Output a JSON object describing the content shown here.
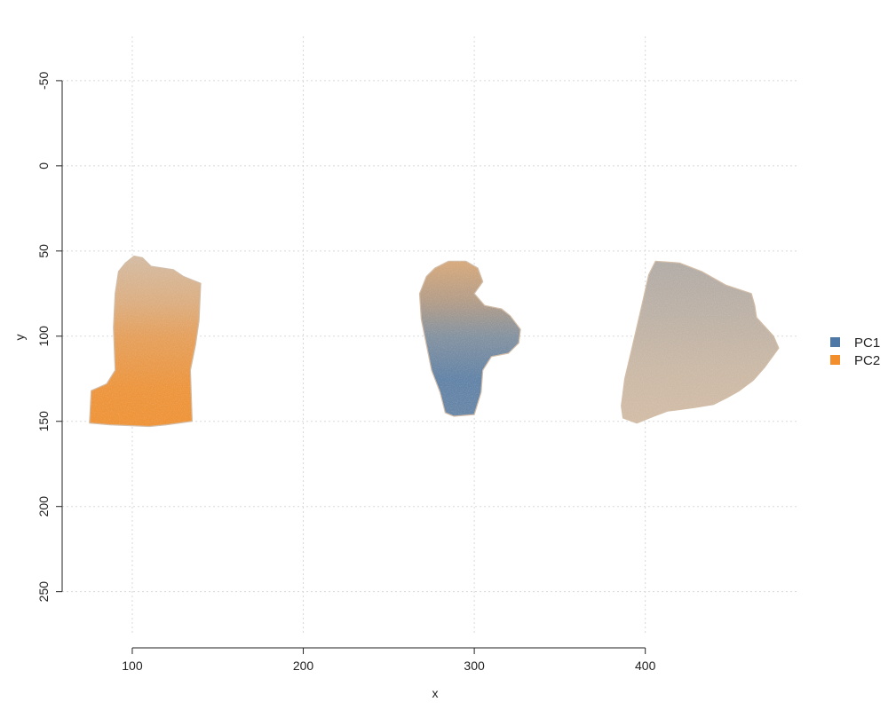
{
  "chart_data": {
    "type": "scatter",
    "xlabel": "x",
    "ylabel": "y",
    "xlim": [
      59,
      490
    ],
    "ylim": [
      -76,
      283
    ],
    "y_reversed": true,
    "x_ticks": [
      100,
      200,
      300,
      400
    ],
    "y_ticks": [
      -50,
      0,
      50,
      100,
      150,
      200,
      250
    ],
    "x_tick_labels": [
      "100",
      "200",
      "300",
      "400"
    ],
    "y_tick_labels": [
      "-50",
      "0",
      "50",
      "100",
      "150",
      "200",
      "250"
    ],
    "grid": true,
    "legend_position": "right",
    "legend": [
      {
        "name": "PC1",
        "color": "#4e79a7"
      },
      {
        "name": "PC2",
        "color": "#f28e2b"
      }
    ],
    "background_color": "#d2bca6",
    "regions": [
      {
        "id": "section-1",
        "outline": [
          [
            101,
            53
          ],
          [
            106,
            54
          ],
          [
            111,
            59
          ],
          [
            124,
            61
          ],
          [
            130,
            65
          ],
          [
            140,
            69
          ],
          [
            139,
            91
          ],
          [
            137,
            105
          ],
          [
            134,
            120
          ],
          [
            135,
            150
          ],
          [
            120,
            152
          ],
          [
            110,
            153
          ],
          [
            87,
            152
          ],
          [
            75,
            151
          ],
          [
            76,
            132
          ],
          [
            85,
            128
          ],
          [
            90,
            120
          ],
          [
            89,
            95
          ],
          [
            90,
            75
          ],
          [
            92,
            62
          ],
          [
            96,
            57
          ]
        ],
        "blend": [
          {
            "y": 55,
            "pc1": 0.0,
            "pc2": 0.05
          },
          {
            "y": 80,
            "pc1": 0.0,
            "pc2": 0.3
          },
          {
            "y": 100,
            "pc1": 0.0,
            "pc2": 0.6
          },
          {
            "y": 130,
            "pc1": 0.0,
            "pc2": 0.85
          },
          {
            "y": 153,
            "pc1": 0.0,
            "pc2": 0.9
          }
        ]
      },
      {
        "id": "section-2",
        "outline": [
          [
            285,
            56
          ],
          [
            295,
            56
          ],
          [
            302,
            60
          ],
          [
            305,
            68
          ],
          [
            300,
            75
          ],
          [
            306,
            82
          ],
          [
            316,
            84
          ],
          [
            321,
            88
          ],
          [
            327,
            96
          ],
          [
            326,
            104
          ],
          [
            320,
            110
          ],
          [
            310,
            112
          ],
          [
            305,
            120
          ],
          [
            304,
            133
          ],
          [
            300,
            146
          ],
          [
            288,
            147
          ],
          [
            283,
            145
          ],
          [
            280,
            133
          ],
          [
            275,
            120
          ],
          [
            272,
            105
          ],
          [
            269,
            90
          ],
          [
            268,
            75
          ],
          [
            272,
            65
          ],
          [
            277,
            60
          ]
        ],
        "blend": [
          {
            "y": 56,
            "pc1": 0.05,
            "pc2": 0.35
          },
          {
            "y": 80,
            "pc1": 0.3,
            "pc2": 0.25
          },
          {
            "y": 100,
            "pc1": 0.6,
            "pc2": 0.05
          },
          {
            "y": 125,
            "pc1": 0.85,
            "pc2": 0.0
          },
          {
            "y": 147,
            "pc1": 0.8,
            "pc2": 0.0
          }
        ]
      },
      {
        "id": "section-3",
        "outline": [
          [
            406,
            56
          ],
          [
            420,
            57
          ],
          [
            433,
            62
          ],
          [
            447,
            70
          ],
          [
            462,
            75
          ],
          [
            464,
            82
          ],
          [
            465,
            89
          ],
          [
            475,
            100
          ],
          [
            478,
            107
          ],
          [
            470,
            118
          ],
          [
            463,
            126
          ],
          [
            455,
            132
          ],
          [
            448,
            136
          ],
          [
            440,
            140
          ],
          [
            428,
            142
          ],
          [
            413,
            144
          ],
          [
            405,
            147
          ],
          [
            395,
            151
          ],
          [
            387,
            148
          ],
          [
            386,
            141
          ],
          [
            388,
            125
          ],
          [
            392,
            108
          ],
          [
            398,
            82
          ],
          [
            402,
            64
          ]
        ],
        "blend": [
          {
            "y": 56,
            "pc1": 0.25,
            "pc2": 0.0
          },
          {
            "y": 90,
            "pc1": 0.15,
            "pc2": 0.0
          },
          {
            "y": 120,
            "pc1": 0.05,
            "pc2": 0.0
          },
          {
            "y": 151,
            "pc1": 0.0,
            "pc2": 0.0
          }
        ]
      }
    ]
  }
}
